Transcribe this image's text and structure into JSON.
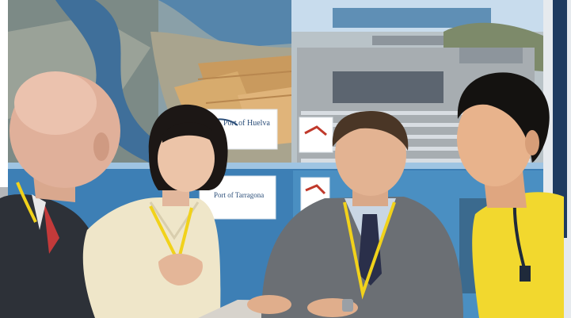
{
  "photo": {
    "signs": {
      "port_huelva": "Port of Huelva",
      "port_tarragona": "Port of Tarragona"
    },
    "colors": {
      "backdrop_sky": "#c8dced",
      "river": "#3f6f9a",
      "fields": "#c99a5e",
      "panel_blue": "#3d7fb5",
      "lanyard": "#f1d21b",
      "polo_shirt": "#f2d82e",
      "suit_grey": "#6b6f74",
      "blouse": "#efe6c9"
    }
  }
}
